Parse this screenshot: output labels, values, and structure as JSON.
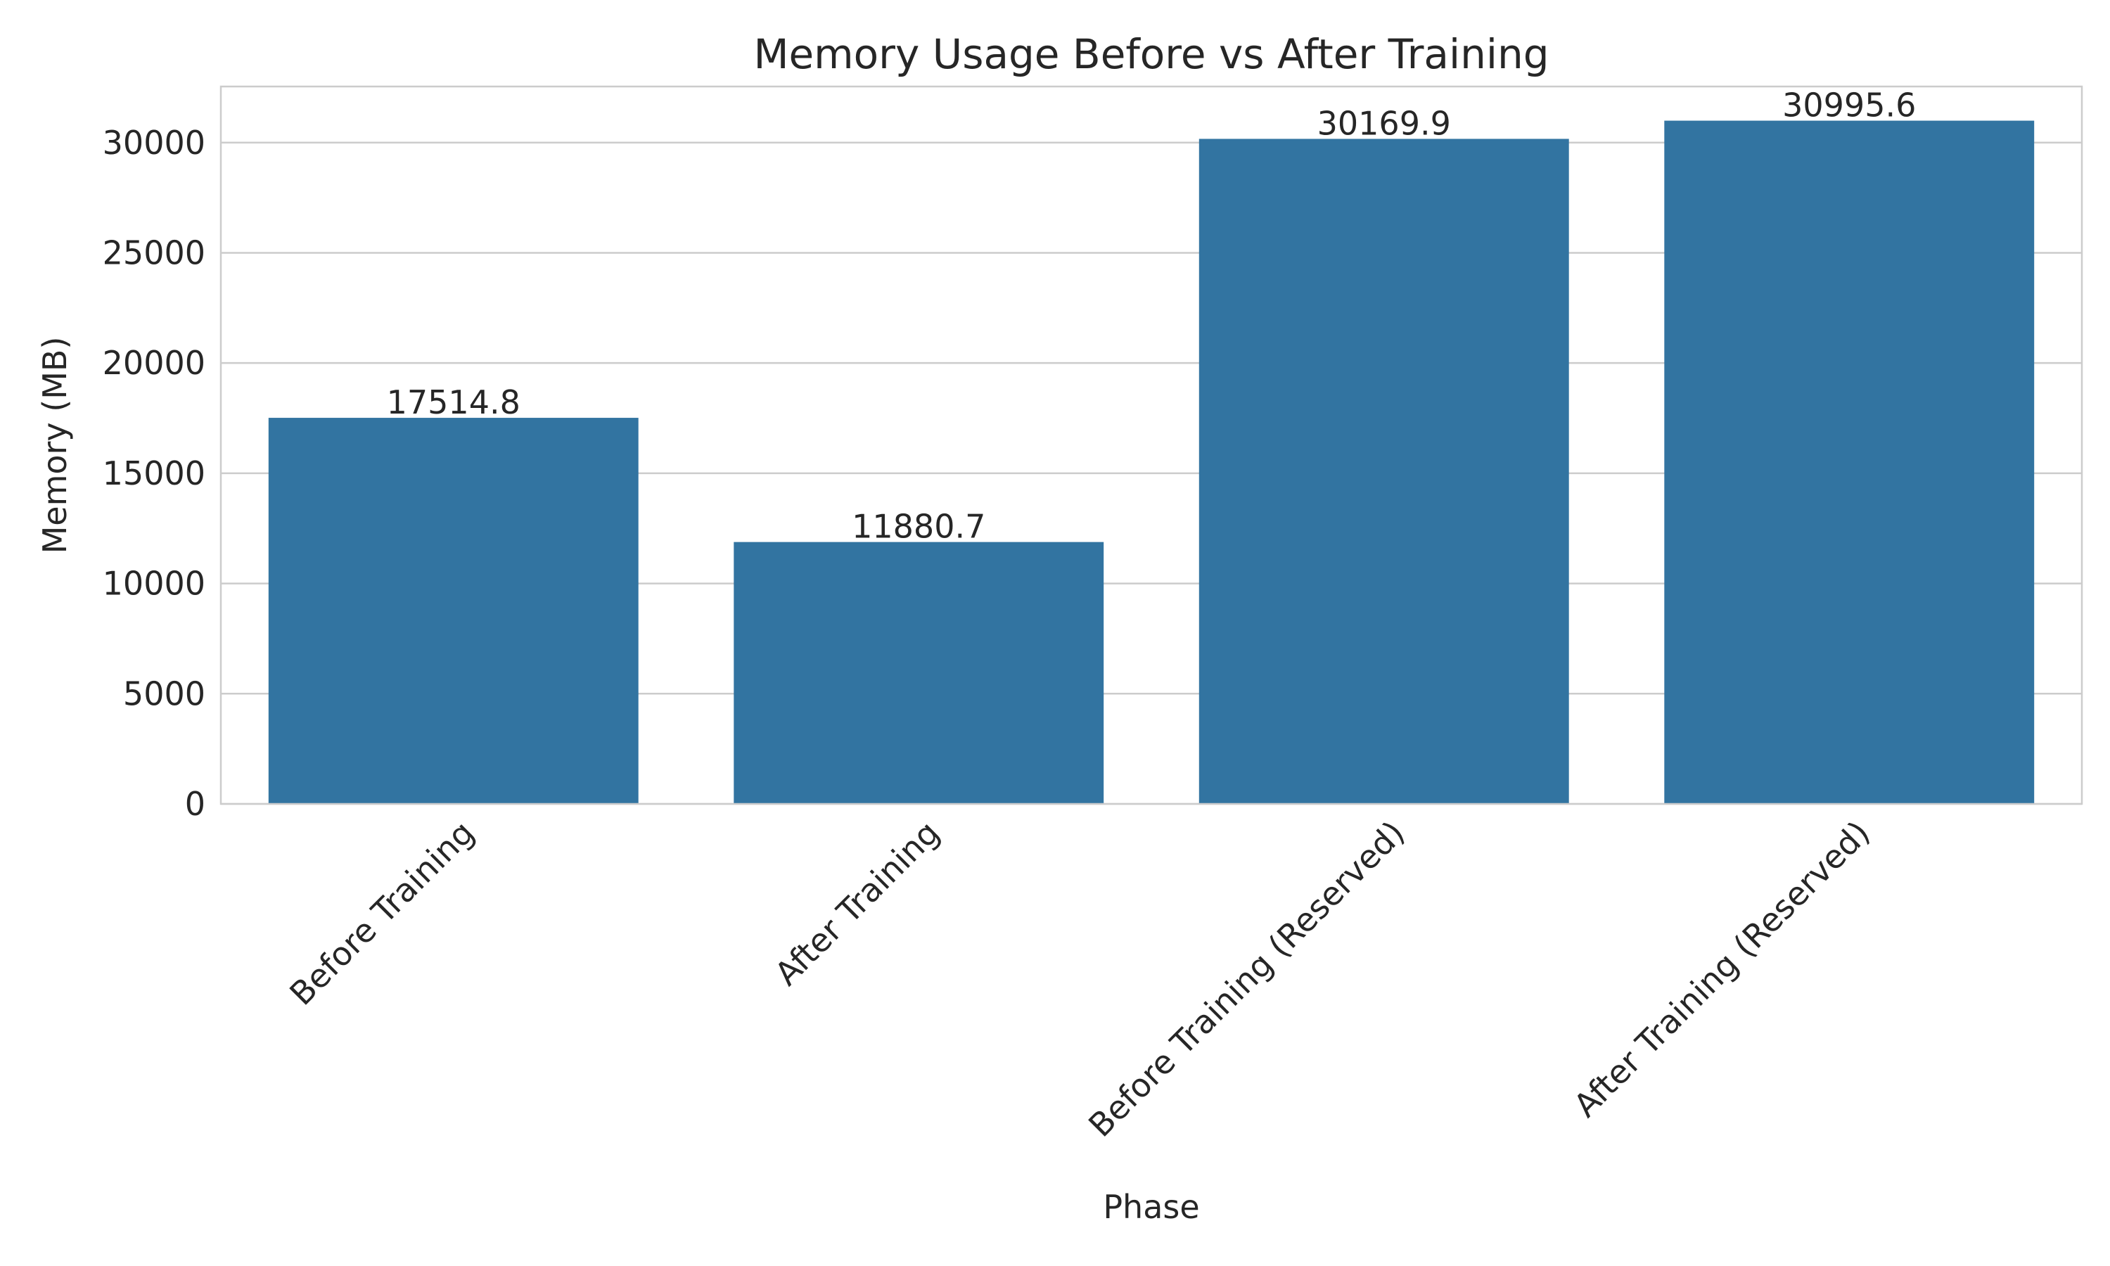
{
  "chart_data": {
    "type": "bar",
    "title": "Memory Usage Before vs After Training",
    "xlabel": "Phase",
    "ylabel": "Memory (MB)",
    "categories": [
      "Before Training",
      "After Training",
      "Before Training (Reserved)",
      "After Training (Reserved)"
    ],
    "values": [
      17514.8,
      11880.7,
      30169.9,
      30995.6
    ],
    "value_labels": [
      "17514.8",
      "11880.7",
      "30169.9",
      "30995.6"
    ],
    "yticks": [
      0,
      5000,
      10000,
      15000,
      20000,
      25000,
      30000
    ],
    "ytick_labels": [
      "0",
      "5000",
      "10000",
      "15000",
      "20000",
      "25000",
      "30000"
    ],
    "ylim": [
      0,
      32545
    ],
    "grid": true,
    "tick_rotation_deg": 45,
    "bar_color": "#3274a1",
    "grid_color": "#cccccc",
    "text_color": "#262626"
  }
}
